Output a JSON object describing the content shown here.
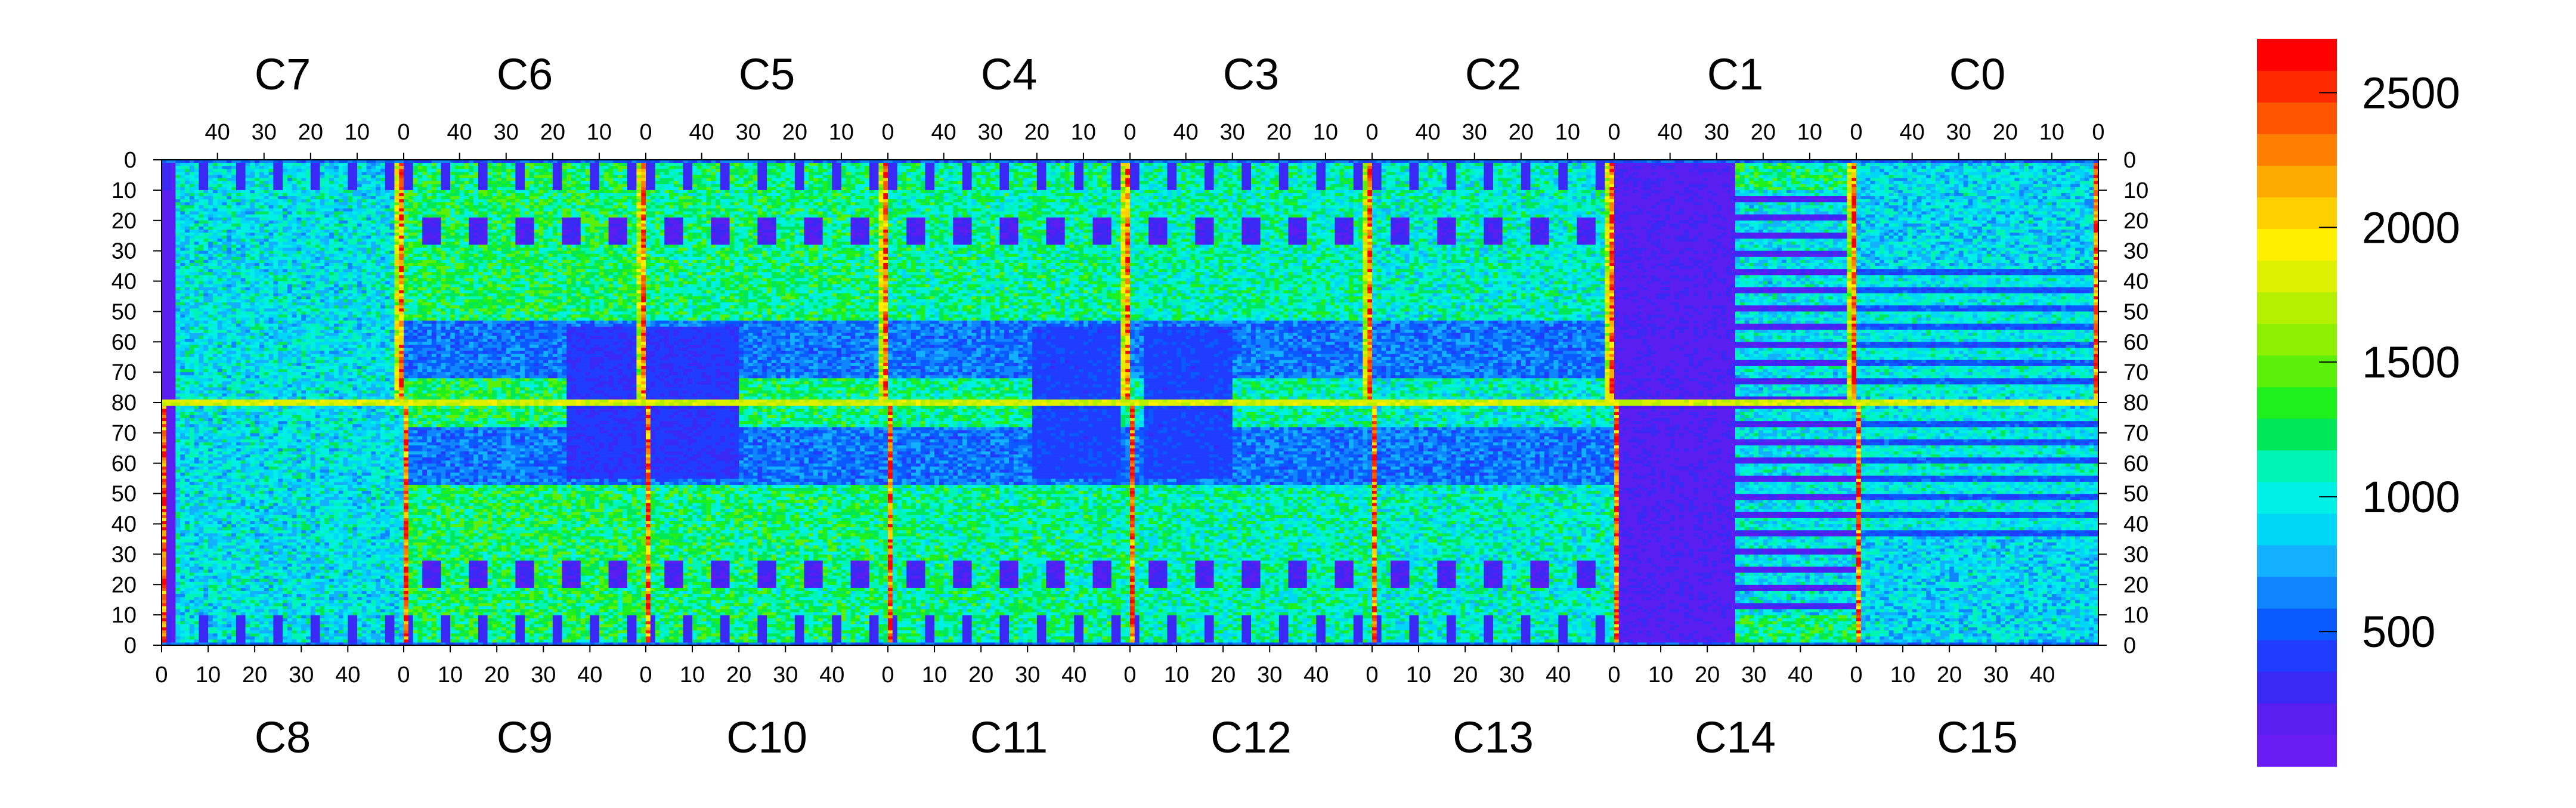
{
  "chart_data": {
    "type": "heatmap",
    "title": "",
    "xlabel": "",
    "ylabel": "",
    "grid": false,
    "chip_labels_top": [
      "C7",
      "C6",
      "C5",
      "C4",
      "C3",
      "C2",
      "C1",
      "C0"
    ],
    "chip_labels_bottom": [
      "C8",
      "C9",
      "C10",
      "C11",
      "C12",
      "C13",
      "C14",
      "C15"
    ],
    "top_chip_tick_labels": [
      "40",
      "30",
      "20",
      "10",
      "0"
    ],
    "bottom_chip_tick_labels": [
      "0",
      "10",
      "20",
      "30",
      "40"
    ],
    "top_chip_col_range": [
      52,
      0
    ],
    "bottom_chip_col_range": [
      0,
      52
    ],
    "y_tick_labels_top_half": [
      "0",
      "10",
      "20",
      "30",
      "40",
      "50",
      "60",
      "70",
      "80"
    ],
    "y_tick_labels_bottom_half": [
      "70",
      "60",
      "50",
      "40",
      "30",
      "20",
      "10",
      "0"
    ],
    "y_range_top_half": [
      0,
      80
    ],
    "y_range_bottom_half": [
      80,
      0
    ],
    "colorbar": {
      "min": 0,
      "max": 2700,
      "tick_labels": [
        "500",
        "1000",
        "1500",
        "2000",
        "2500"
      ],
      "tick_values": [
        500,
        1000,
        1500,
        2000,
        2500
      ],
      "colors": [
        "#6a1cf5",
        "#5a1ef0",
        "#3a28f5",
        "#1f3cff",
        "#0a5aff",
        "#0f86ff",
        "#12b0ff",
        "#00d6f5",
        "#00f0e6",
        "#00f5b4",
        "#00e85a",
        "#1ef01e",
        "#5af00a",
        "#8cf000",
        "#b4f000",
        "#dcf000",
        "#fff000",
        "#ffd000",
        "#ffaa00",
        "#ff8000",
        "#ff5500",
        "#ff2a00",
        "#ff0000"
      ]
    },
    "cell_value_scale": "approx. 0–2700 counts, per-pixel map of 16 chips (C0–C15)"
  }
}
